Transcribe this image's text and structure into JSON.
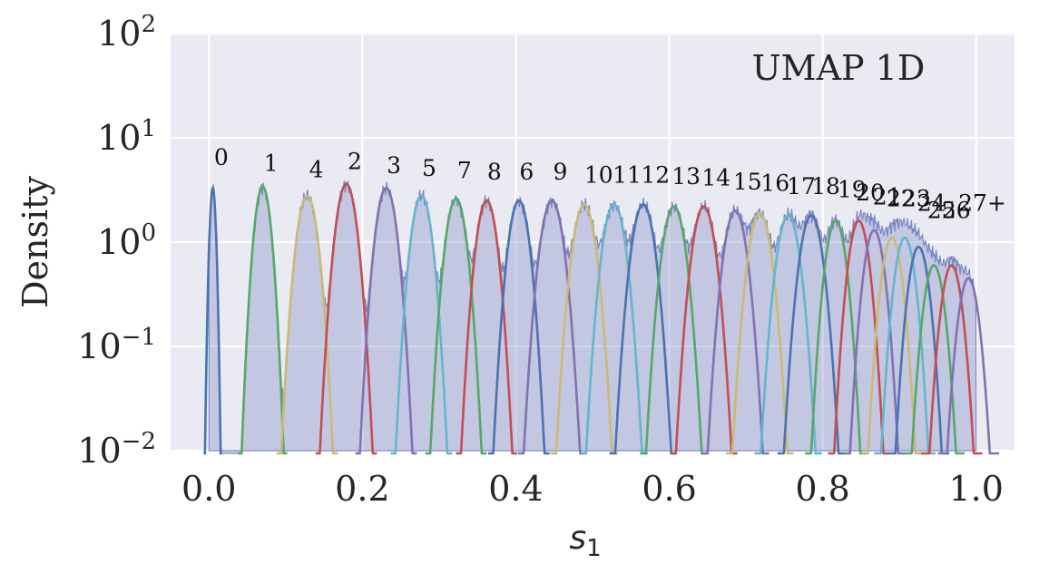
{
  "chart_data": {
    "type": "area",
    "xlabel": "s",
    "xlabel_sub": "1",
    "ylabel": "Density",
    "annotation": "UMAP 1D",
    "xlim": [
      -0.05,
      1.05
    ],
    "ylim": [
      0.01,
      100
    ],
    "yscale": "log",
    "grid": true,
    "background": "#EAEAF2",
    "histogram_color": "#7A86C2",
    "x_ticks": [
      {
        "value": 0.0,
        "label": "0.0"
      },
      {
        "value": 0.2,
        "label": "0.2"
      },
      {
        "value": 0.4,
        "label": "0.4"
      },
      {
        "value": 0.6,
        "label": "0.6"
      },
      {
        "value": 0.8,
        "label": "0.8"
      },
      {
        "value": 1.0,
        "label": "1.0"
      }
    ],
    "y_ticks": [
      {
        "value": 0.01,
        "base": "10",
        "exp": "−2"
      },
      {
        "value": 0.1,
        "base": "10",
        "exp": "−1"
      },
      {
        "value": 1,
        "base": "10",
        "exp": "0"
      },
      {
        "value": 10,
        "base": "10",
        "exp": "1"
      },
      {
        "value": 100,
        "base": "10",
        "exp": "2"
      }
    ],
    "peaks": [
      {
        "label": "0",
        "x": 0.005,
        "peak": 3.3,
        "width": 0.003,
        "color": "#4C72B0",
        "label_x": 0.016,
        "label_y": 5.5
      },
      {
        "label": "1",
        "x": 0.07,
        "peak": 3.4,
        "width": 0.008,
        "color": "#55A868",
        "label_x": 0.081,
        "label_y": 4.8
      },
      {
        "label": "4",
        "x": 0.128,
        "peak": 2.8,
        "width": 0.01,
        "color": "#CCB974",
        "label_x": 0.14,
        "label_y": 4.2
      },
      {
        "label": "2",
        "x": 0.179,
        "peak": 3.6,
        "width": 0.01,
        "color": "#C44E52",
        "label_x": 0.19,
        "label_y": 5.0
      },
      {
        "label": "3",
        "x": 0.231,
        "peak": 3.3,
        "width": 0.01,
        "color": "#8172B2",
        "label_x": 0.241,
        "label_y": 4.6
      },
      {
        "label": "5",
        "x": 0.277,
        "peak": 2.8,
        "width": 0.01,
        "color": "#64B5CD",
        "label_x": 0.287,
        "label_y": 4.3
      },
      {
        "label": "7",
        "x": 0.322,
        "peak": 2.6,
        "width": 0.01,
        "color": "#55A868",
        "label_x": 0.333,
        "label_y": 4.1
      },
      {
        "label": "8",
        "x": 0.362,
        "peak": 2.5,
        "width": 0.01,
        "color": "#C44E52",
        "label_x": 0.372,
        "label_y": 4.0
      },
      {
        "label": "6",
        "x": 0.404,
        "peak": 2.5,
        "width": 0.01,
        "color": "#4C72B0",
        "label_x": 0.414,
        "label_y": 4.0
      },
      {
        "label": "9",
        "x": 0.447,
        "peak": 2.5,
        "width": 0.011,
        "color": "#8172B2",
        "label_x": 0.458,
        "label_y": 4.0
      },
      {
        "label": "10",
        "x": 0.489,
        "peak": 2.3,
        "width": 0.011,
        "color": "#CCB974",
        "label_x": 0.508,
        "label_y": 3.7
      },
      {
        "label": "11",
        "x": 0.528,
        "peak": 2.3,
        "width": 0.011,
        "color": "#64B5CD",
        "label_x": 0.545,
        "label_y": 3.7
      },
      {
        "label": "12",
        "x": 0.566,
        "peak": 2.3,
        "width": 0.011,
        "color": "#4C72B0",
        "label_x": 0.582,
        "label_y": 3.7
      },
      {
        "label": "13",
        "x": 0.606,
        "peak": 2.2,
        "width": 0.011,
        "color": "#55A868",
        "label_x": 0.622,
        "label_y": 3.6
      },
      {
        "label": "14",
        "x": 0.645,
        "peak": 2.2,
        "width": 0.011,
        "color": "#C44E52",
        "label_x": 0.661,
        "label_y": 3.5
      },
      {
        "label": "15",
        "x": 0.686,
        "peak": 2.0,
        "width": 0.011,
        "color": "#8172B2",
        "label_x": 0.702,
        "label_y": 3.2
      },
      {
        "label": "16",
        "x": 0.718,
        "peak": 1.9,
        "width": 0.011,
        "color": "#CCB974",
        "label_x": 0.738,
        "label_y": 3.1
      },
      {
        "label": "17",
        "x": 0.755,
        "peak": 1.8,
        "width": 0.011,
        "color": "#64B5CD",
        "label_x": 0.772,
        "label_y": 2.9
      },
      {
        "label": "18",
        "x": 0.785,
        "peak": 1.8,
        "width": 0.011,
        "color": "#4C72B0",
        "label_x": 0.804,
        "label_y": 2.9
      },
      {
        "label": "19",
        "x": 0.817,
        "peak": 1.6,
        "width": 0.01,
        "color": "#55A868",
        "label_x": 0.838,
        "label_y": 2.7
      },
      {
        "label": "20",
        "x": 0.847,
        "peak": 1.6,
        "width": 0.01,
        "color": "#C44E52",
        "label_x": 0.862,
        "label_y": 2.5
      },
      {
        "label": "21",
        "x": 0.867,
        "peak": 1.3,
        "width": 0.01,
        "color": "#8172B2",
        "label_x": 0.884,
        "label_y": 2.3
      },
      {
        "label": "22",
        "x": 0.89,
        "peak": 1.1,
        "width": 0.01,
        "color": "#CCB974",
        "label_x": 0.902,
        "label_y": 2.2
      },
      {
        "label": "23",
        "x": 0.907,
        "peak": 1.1,
        "width": 0.01,
        "color": "#64B5CD",
        "label_x": 0.922,
        "label_y": 2.2
      },
      {
        "label": "24",
        "x": 0.925,
        "peak": 0.9,
        "width": 0.01,
        "color": "#4C72B0",
        "label_x": 0.942,
        "label_y": 2.0
      },
      {
        "label": "25",
        "x": 0.945,
        "peak": 0.6,
        "width": 0.01,
        "color": "#55A868",
        "label_x": 0.955,
        "label_y": 1.7
      },
      {
        "label": "26",
        "x": 0.968,
        "peak": 0.6,
        "width": 0.01,
        "color": "#C44E52",
        "label_x": 0.974,
        "label_y": 1.7
      },
      {
        "label": "27+",
        "x": 0.99,
        "peak": 0.45,
        "width": 0.01,
        "color": "#8172B2",
        "label_x": 1.008,
        "label_y": 2.0
      }
    ]
  }
}
